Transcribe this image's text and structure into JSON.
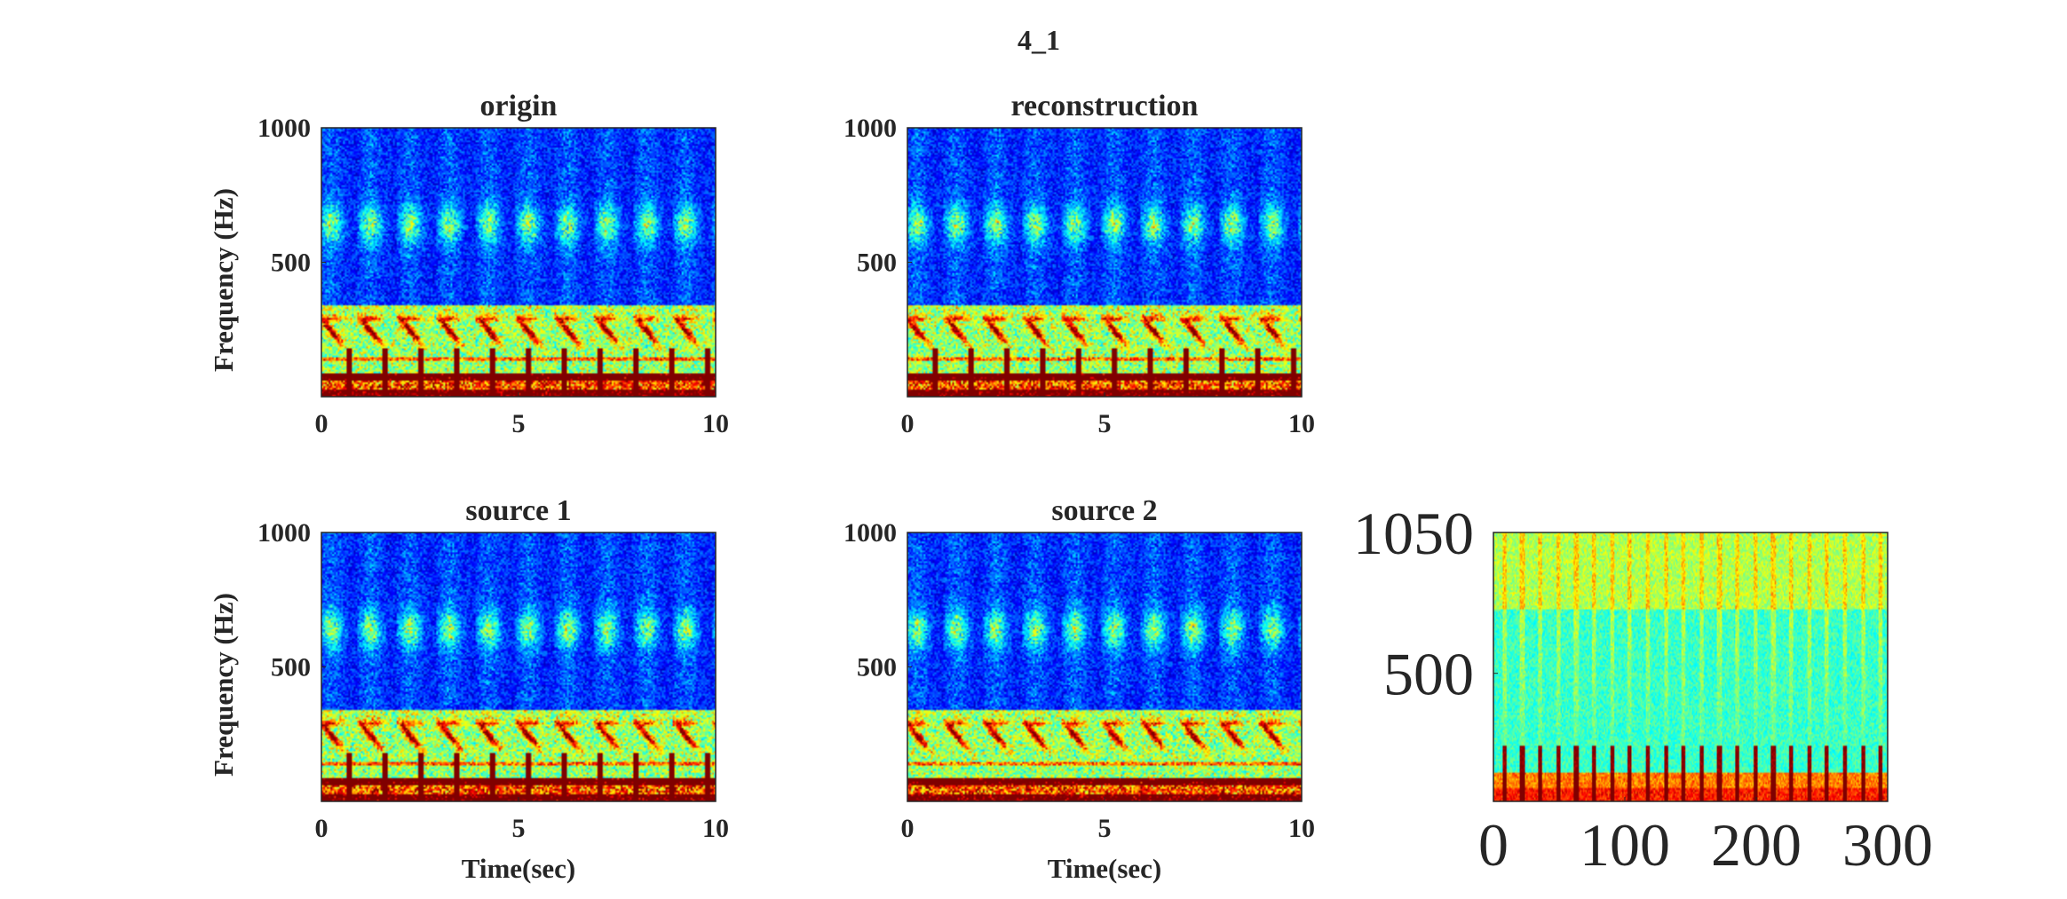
{
  "figure": {
    "title": "4_1"
  },
  "colors": {
    "text": "#262626",
    "axis": "#262626",
    "colormap": "jet"
  },
  "chart_data": [
    {
      "type": "heatmap",
      "title": "origin",
      "xlabel": "",
      "ylabel": "Frequency (Hz)",
      "xlim": [
        0,
        10
      ],
      "ylim": [
        0,
        1000
      ],
      "xticks": [
        0,
        5,
        10
      ],
      "yticks": [
        500,
        1000
      ],
      "features": {
        "call_count": 10,
        "pulse_count": 11
      }
    },
    {
      "type": "heatmap",
      "title": "reconstruction",
      "xlabel": "",
      "ylabel": "",
      "xlim": [
        0,
        10
      ],
      "ylim": [
        0,
        1000
      ],
      "xticks": [
        0,
        5,
        10
      ],
      "yticks": [
        500,
        1000
      ],
      "features": {
        "call_count": 10,
        "pulse_count": 11
      }
    },
    {
      "type": "heatmap",
      "title": "source 1",
      "xlabel": "Time(sec)",
      "ylabel": "Frequency (Hz)",
      "xlim": [
        0,
        10
      ],
      "ylim": [
        0,
        1000
      ],
      "xticks": [
        0,
        5,
        10
      ],
      "yticks": [
        500,
        1000
      ],
      "features": {
        "call_count": 10,
        "pulse_count": 11
      }
    },
    {
      "type": "heatmap",
      "title": "source 2",
      "xlabel": "Time(sec)",
      "ylabel": "",
      "xlim": [
        0,
        10
      ],
      "ylim": [
        0,
        1000
      ],
      "xticks": [
        0,
        5,
        10
      ],
      "yticks": [
        500,
        1000
      ],
      "features": {
        "call_count": 10,
        "pulse_count": 0
      }
    },
    {
      "type": "heatmap",
      "title": "",
      "xlabel": "",
      "ylabel": "",
      "xlim": [
        0,
        300
      ],
      "ylim": [
        0,
        1050
      ],
      "xticks": [
        0,
        100,
        200,
        300
      ],
      "yticks": [
        500,
        1050
      ],
      "features": {
        "pulse_count": 22
      }
    }
  ]
}
